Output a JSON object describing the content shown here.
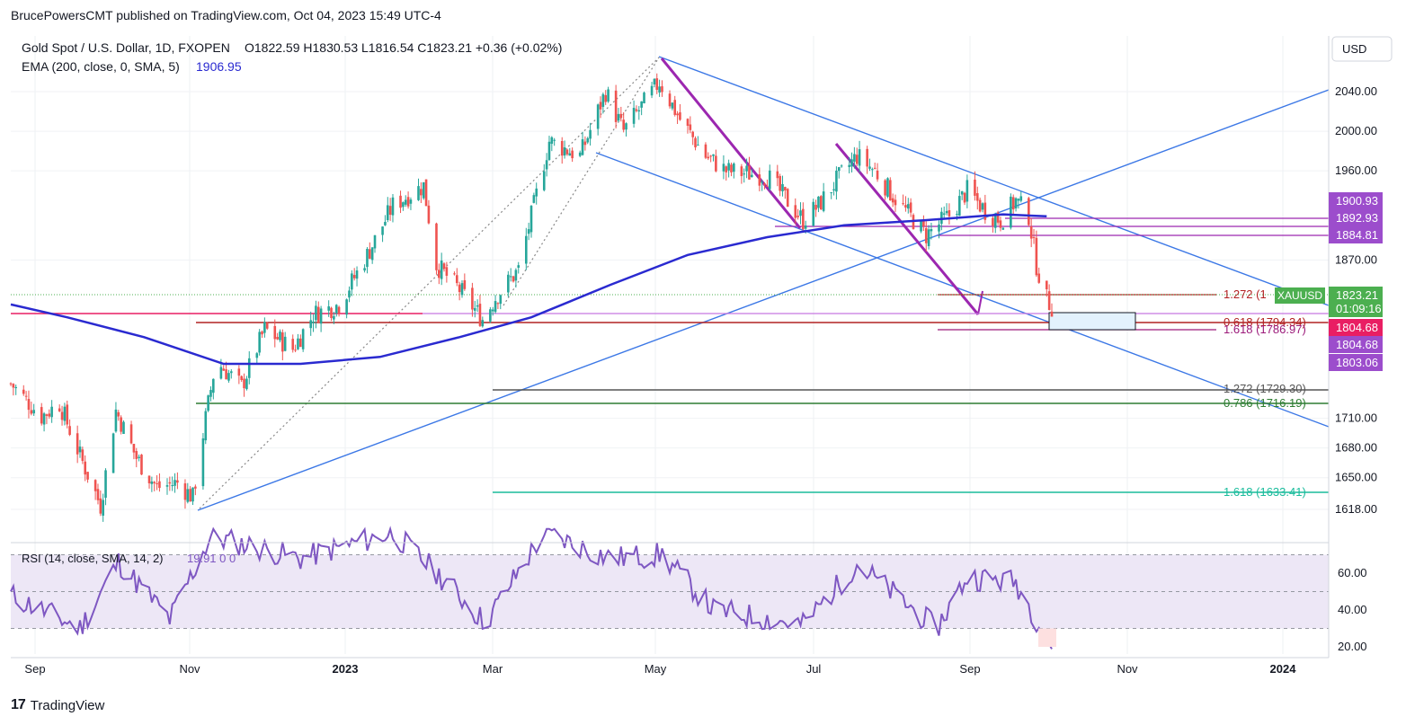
{
  "header": {
    "published": "BrucePowersCMT published on TradingView.com, Oct 04, 2023 15:49 UTC-4"
  },
  "legend": {
    "symbol": "Gold Spot / U.S. Dollar, 1D, FXOPEN",
    "ohlc": "O1822.59  H1830.53  L1816.54  C1823.21  +0.36 (+0.02%)",
    "ema_label": "EMA (200, close, 0, SMA, 5)",
    "ema_value": "1906.95",
    "rsi_label": "RSI (14, close, SMA, 14, 2)",
    "rsi_value": "19.91  0  0"
  },
  "axis": {
    "currency": "USD",
    "price_ticks": [
      "2040.00",
      "2000.00",
      "1960.00",
      "1870.00",
      "1710.00",
      "1680.00",
      "1650.00",
      "1618.00"
    ],
    "rsi_ticks": [
      "60.00",
      "40.00",
      "20.00"
    ],
    "time_ticks": [
      "Sep",
      "Nov",
      "2023",
      "Mar",
      "May",
      "Jul",
      "Sep",
      "Nov",
      "2024"
    ]
  },
  "price_tags": [
    {
      "text": "1900.93",
      "color": "#9c4dcc"
    },
    {
      "text": "1892.93",
      "color": "#9c4dcc"
    },
    {
      "text": "1884.81",
      "color": "#9c4dcc"
    },
    {
      "text": "1823.21",
      "color": "#4caf50"
    },
    {
      "text": "01:09:16",
      "color": "#4caf50"
    },
    {
      "text": "1804.68",
      "color": "#e91e63"
    },
    {
      "text": "1804.68",
      "color": "#9c4dcc"
    },
    {
      "text": "1803.06",
      "color": "#9c4dcc"
    }
  ],
  "symbol_tag": "XAUUSD",
  "fib_labels": [
    {
      "text": "1.272 (1",
      "color": "#b22222"
    },
    {
      "text": "0.618 (1794.34)",
      "color": "#b22222"
    },
    {
      "text": "1.618 (1786.97)",
      "color": "#9c1a7a"
    },
    {
      "text": "1.272 (1729.30)",
      "color": "#555555"
    },
    {
      "text": "0.786 (1716.19)",
      "color": "#2e7d32"
    },
    {
      "text": "1.618 (1633.41)",
      "color": "#1abc9c"
    }
  ],
  "brand": "TradingView",
  "colors": {
    "up": "#26a69a",
    "down": "#ef5350",
    "ema": "#2a2ad0",
    "trend": "#3c78e6",
    "purple": "#9c27b0",
    "rsi": "#7e57c2"
  },
  "chart_data": {
    "type": "candlestick",
    "title": "Gold Spot / U.S. Dollar, 1D, FXOPEN",
    "x_range": [
      "2022-08-24",
      "2023-10-04"
    ],
    "y_range": [
      1600,
      2090
    ],
    "close_path": [
      [
        "2022-08-24",
        1745
      ],
      [
        "2022-09-05",
        1712
      ],
      [
        "2022-09-12",
        1725
      ],
      [
        "2022-09-20",
        1672
      ],
      [
        "2022-09-28",
        1622
      ],
      [
        "2022-10-04",
        1718
      ],
      [
        "2022-10-12",
        1670
      ],
      [
        "2022-10-20",
        1640
      ],
      [
        "2022-10-28",
        1645
      ],
      [
        "2022-11-03",
        1630
      ],
      [
        "2022-11-08",
        1710
      ],
      [
        "2022-11-12",
        1768
      ],
      [
        "2022-11-22",
        1742
      ],
      [
        "2022-12-01",
        1800
      ],
      [
        "2022-12-12",
        1780
      ],
      [
        "2022-12-20",
        1815
      ],
      [
        "2022-12-30",
        1825
      ],
      [
        "2023-01-10",
        1875
      ],
      [
        "2023-01-20",
        1925
      ],
      [
        "2023-02-01",
        1945
      ],
      [
        "2023-02-06",
        1865
      ],
      [
        "2023-02-15",
        1840
      ],
      [
        "2023-02-24",
        1810
      ],
      [
        "2023-03-01",
        1832
      ],
      [
        "2023-03-10",
        1860
      ],
      [
        "2023-03-16",
        1925
      ],
      [
        "2023-03-22",
        1990
      ],
      [
        "2023-04-03",
        1975
      ],
      [
        "2023-04-13",
        2040
      ],
      [
        "2023-04-20",
        2000
      ],
      [
        "2023-05-04",
        2050
      ],
      [
        "2023-05-12",
        2012
      ],
      [
        "2023-05-22",
        1975
      ],
      [
        "2023-05-30",
        1960
      ],
      [
        "2023-06-05",
        1958
      ],
      [
        "2023-06-15",
        1955
      ],
      [
        "2023-06-29",
        1910
      ],
      [
        "2023-07-05",
        1925
      ],
      [
        "2023-07-12",
        1950
      ],
      [
        "2023-07-20",
        1975
      ],
      [
        "2023-07-27",
        1960
      ],
      [
        "2023-08-03",
        1935
      ],
      [
        "2023-08-16",
        1895
      ],
      [
        "2023-08-25",
        1915
      ],
      [
        "2023-09-01",
        1940
      ],
      [
        "2023-09-08",
        1920
      ],
      [
        "2023-09-14",
        1910
      ],
      [
        "2023-09-20",
        1930
      ],
      [
        "2023-09-25",
        1915
      ],
      [
        "2023-09-28",
        1865
      ],
      [
        "2023-10-02",
        1830
      ],
      [
        "2023-10-04",
        1823
      ]
    ],
    "ema_200": [
      [
        "2022-08-24",
        1825
      ],
      [
        "2022-09-15",
        1812
      ],
      [
        "2022-10-15",
        1792
      ],
      [
        "2022-11-15",
        1765
      ],
      [
        "2022-12-15",
        1765
      ],
      [
        "2023-01-15",
        1772
      ],
      [
        "2023-02-15",
        1792
      ],
      [
        "2023-03-15",
        1812
      ],
      [
        "2023-04-15",
        1845
      ],
      [
        "2023-05-15",
        1875
      ],
      [
        "2023-06-15",
        1893
      ],
      [
        "2023-07-15",
        1905
      ],
      [
        "2023-08-15",
        1910
      ],
      [
        "2023-09-15",
        1916
      ],
      [
        "2023-10-02",
        1914
      ]
    ],
    "rsi": [
      [
        "2022-08-24",
        48
      ],
      [
        "2022-09-20",
        30
      ],
      [
        "2022-10-05",
        66
      ],
      [
        "2022-10-25",
        35
      ],
      [
        "2022-11-10",
        80
      ],
      [
        "2022-12-15",
        68
      ],
      [
        "2023-01-20",
        82
      ],
      [
        "2023-02-10",
        55
      ],
      [
        "2023-02-25",
        33
      ],
      [
        "2023-03-20",
        82
      ],
      [
        "2023-04-15",
        68
      ],
      [
        "2023-05-05",
        70
      ],
      [
        "2023-05-25",
        40
      ],
      [
        "2023-06-29",
        32
      ],
      [
        "2023-07-20",
        65
      ],
      [
        "2023-08-20",
        30
      ],
      [
        "2023-09-01",
        58
      ],
      [
        "2023-09-20",
        55
      ],
      [
        "2023-10-04",
        20
      ]
    ],
    "horizontal_levels": [
      1900.93,
      1892.93,
      1884.81,
      1823.21,
      1804.68,
      1794.34,
      1786.97,
      1729.3,
      1716.19,
      1633.41
    ],
    "grid": true,
    "legend_position": "top-left"
  }
}
